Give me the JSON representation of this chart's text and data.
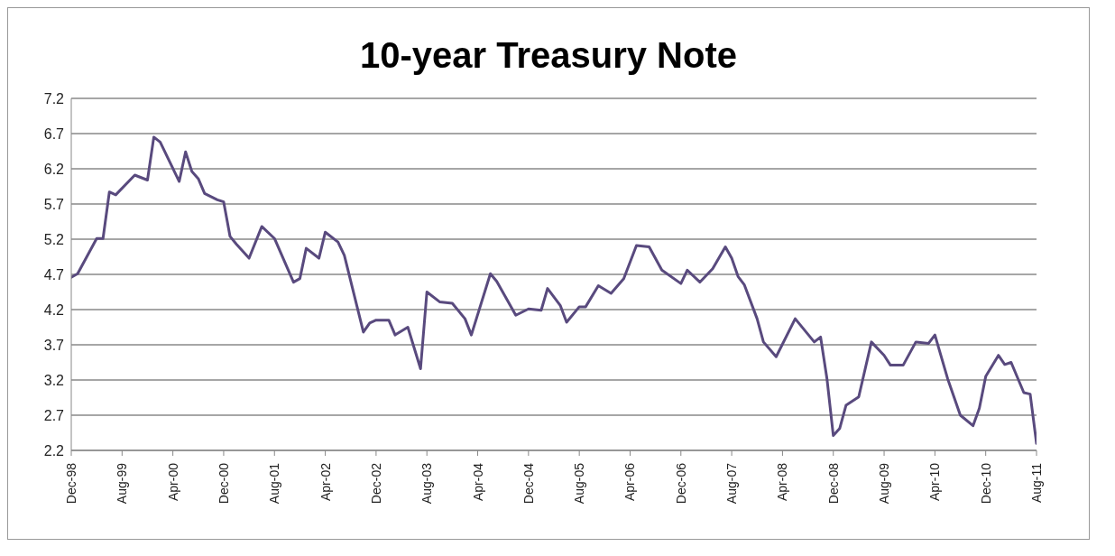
{
  "chart_data": {
    "type": "line",
    "title": "10-year Treasury Note",
    "x": [
      "1998-12",
      "1999-01",
      "1999-04",
      "1999-05",
      "1999-06",
      "1999-07",
      "1999-10",
      "1999-12",
      "2000-01",
      "2000-02",
      "2000-05",
      "2000-06",
      "2000-07",
      "2000-08",
      "2000-09",
      "2000-11",
      "2000-12",
      "2001-01",
      "2001-02",
      "2001-04",
      "2001-06",
      "2001-08",
      "2001-11",
      "2001-12",
      "2002-01",
      "2002-03",
      "2002-04",
      "2002-06",
      "2002-07",
      "2002-10",
      "2002-11",
      "2002-12",
      "2003-02",
      "2003-03",
      "2003-05",
      "2003-07",
      "2003-08",
      "2003-10",
      "2003-12",
      "2004-02",
      "2004-03",
      "2004-06",
      "2004-07",
      "2004-10",
      "2004-12",
      "2005-02",
      "2005-03",
      "2005-05",
      "2005-06",
      "2005-08",
      "2005-09",
      "2005-11",
      "2006-01",
      "2006-03",
      "2006-05",
      "2006-07",
      "2006-09",
      "2006-12",
      "2007-01",
      "2007-03",
      "2007-05",
      "2007-07",
      "2007-08",
      "2007-09",
      "2007-10",
      "2007-12",
      "2008-01",
      "2008-03",
      "2008-06",
      "2008-09",
      "2008-10",
      "2008-11",
      "2008-12",
      "2009-01",
      "2009-02",
      "2009-04",
      "2009-06",
      "2009-08",
      "2009-09",
      "2009-11",
      "2010-01",
      "2010-03",
      "2010-04",
      "2010-06",
      "2010-08",
      "2010-10",
      "2010-11",
      "2010-12",
      "2011-02",
      "2011-03",
      "2011-04",
      "2011-06",
      "2011-07",
      "2011-08"
    ],
    "series": [
      {
        "color": "#594a7e",
        "values": [
          4.66,
          4.71,
          5.21,
          5.21,
          5.87,
          5.83,
          6.11,
          6.04,
          6.65,
          6.58,
          6.02,
          6.44,
          6.16,
          6.06,
          5.85,
          5.76,
          5.73,
          5.24,
          5.13,
          4.93,
          5.38,
          5.21,
          4.59,
          4.64,
          5.07,
          4.93,
          5.3,
          5.16,
          4.97,
          3.88,
          4.01,
          4.05,
          4.05,
          3.84,
          3.95,
          3.36,
          4.45,
          4.31,
          4.29,
          4.07,
          3.84,
          4.71,
          4.6,
          4.12,
          4.21,
          4.19,
          4.5,
          4.26,
          4.02,
          4.24,
          4.24,
          4.54,
          4.43,
          4.64,
          5.11,
          5.09,
          4.76,
          4.57,
          4.76,
          4.59,
          4.78,
          5.09,
          4.93,
          4.67,
          4.55,
          4.07,
          3.74,
          3.53,
          4.07,
          3.74,
          3.81,
          3.22,
          2.41,
          2.51,
          2.84,
          2.96,
          3.74,
          3.55,
          3.41,
          3.41,
          3.74,
          3.72,
          3.84,
          3.22,
          2.7,
          2.55,
          2.8,
          3.25,
          3.55,
          3.42,
          3.45,
          3.02,
          3.0,
          2.3
        ]
      }
    ],
    "xlim": [
      "1998-12",
      "2011-08"
    ],
    "xticks": [
      {
        "value": "1998-12",
        "label": "Dec-98"
      },
      {
        "value": "1999-08",
        "label": "Aug-99"
      },
      {
        "value": "2000-04",
        "label": "Apr-00"
      },
      {
        "value": "2000-12",
        "label": "Dec-00"
      },
      {
        "value": "2001-08",
        "label": "Aug-01"
      },
      {
        "value": "2002-04",
        "label": "Apr-02"
      },
      {
        "value": "2002-12",
        "label": "Dec-02"
      },
      {
        "value": "2003-08",
        "label": "Aug-03"
      },
      {
        "value": "2004-04",
        "label": "Apr-04"
      },
      {
        "value": "2004-12",
        "label": "Dec-04"
      },
      {
        "value": "2005-08",
        "label": "Aug-05"
      },
      {
        "value": "2006-04",
        "label": "Apr-06"
      },
      {
        "value": "2006-12",
        "label": "Dec-06"
      },
      {
        "value": "2007-08",
        "label": "Aug-07"
      },
      {
        "value": "2008-04",
        "label": "Apr-08"
      },
      {
        "value": "2008-12",
        "label": "Dec-08"
      },
      {
        "value": "2009-08",
        "label": "Aug-09"
      },
      {
        "value": "2010-04",
        "label": "Apr-10"
      },
      {
        "value": "2010-12",
        "label": "Dec-10"
      },
      {
        "value": "2011-08",
        "label": "Aug-11"
      }
    ],
    "ylim": [
      2.2,
      7.2
    ],
    "yticks": [
      2.2,
      2.7,
      3.2,
      3.7,
      4.2,
      4.7,
      5.2,
      5.7,
      6.2,
      6.7,
      7.2
    ],
    "grid": "y",
    "legend": false,
    "marker": "none",
    "line_style": "solid"
  }
}
